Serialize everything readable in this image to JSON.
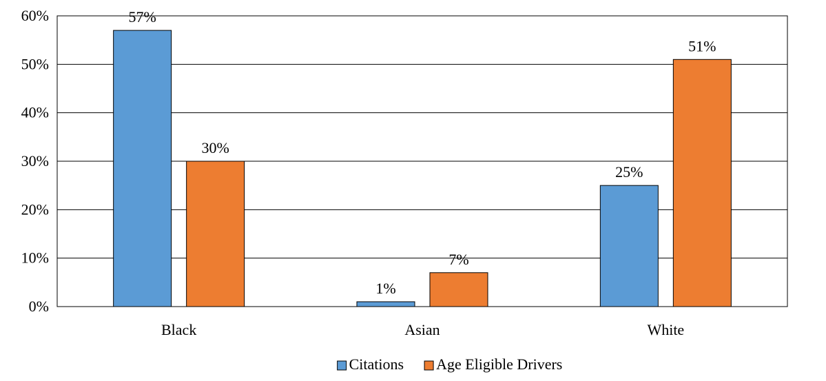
{
  "chart_data": {
    "type": "bar",
    "categories": [
      "Black",
      "Asian",
      "White"
    ],
    "series": [
      {
        "name": "Citations",
        "values": [
          57,
          1,
          25
        ],
        "color": "#5B9BD5",
        "labels": [
          "57%",
          "1%",
          "25%"
        ]
      },
      {
        "name": "Age Eligible Drivers",
        "values": [
          30,
          7,
          51
        ],
        "color": "#ED7D31",
        "labels": [
          "30%",
          "7%",
          "51%"
        ]
      }
    ],
    "ylim": [
      0,
      60
    ],
    "yticks": [
      0,
      10,
      20,
      30,
      40,
      50,
      60
    ],
    "ytick_labels": [
      "0%",
      "10%",
      "20%",
      "30%",
      "40%",
      "50%",
      "60%"
    ],
    "title": "",
    "xlabel": "",
    "ylabel": "",
    "grid": true,
    "legend_position": "bottom"
  }
}
